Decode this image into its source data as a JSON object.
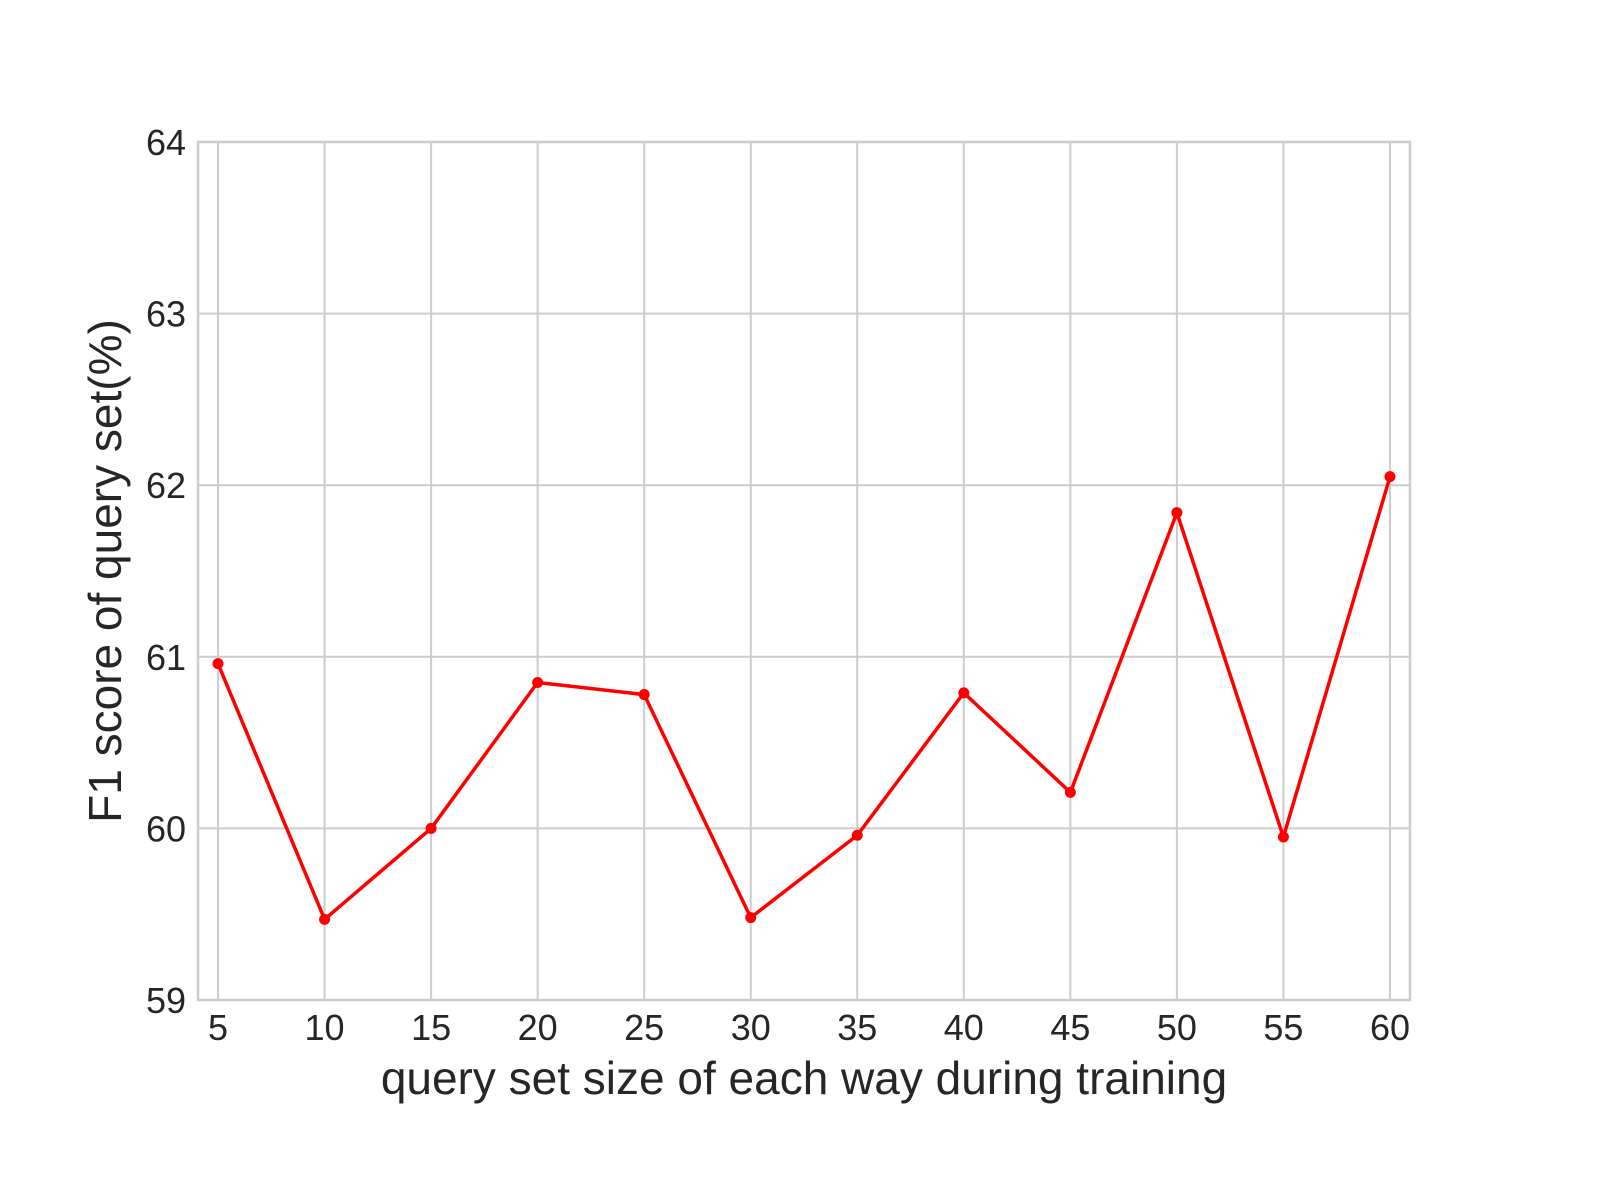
{
  "chart_data": {
    "type": "line",
    "title": "",
    "xlabel": "query set size of each way during training",
    "ylabel": "F1 score of query set(%)",
    "x": [
      5,
      10,
      15,
      20,
      25,
      30,
      35,
      40,
      45,
      50,
      55,
      60
    ],
    "xticks": [
      "5",
      "10",
      "15",
      "20",
      "25",
      "30",
      "35",
      "40",
      "45",
      "50",
      "55",
      "60"
    ],
    "yticks": [
      "59",
      "60",
      "61",
      "62",
      "63",
      "64"
    ],
    "ylim": [
      59,
      64
    ],
    "grid": true,
    "legend": "none",
    "series": [
      {
        "color": "#ff0000",
        "marker": "circle",
        "values": [
          60.96,
          59.47,
          60.0,
          60.85,
          60.78,
          59.48,
          59.96,
          60.79,
          60.21,
          61.84,
          59.95,
          62.05
        ]
      }
    ]
  }
}
